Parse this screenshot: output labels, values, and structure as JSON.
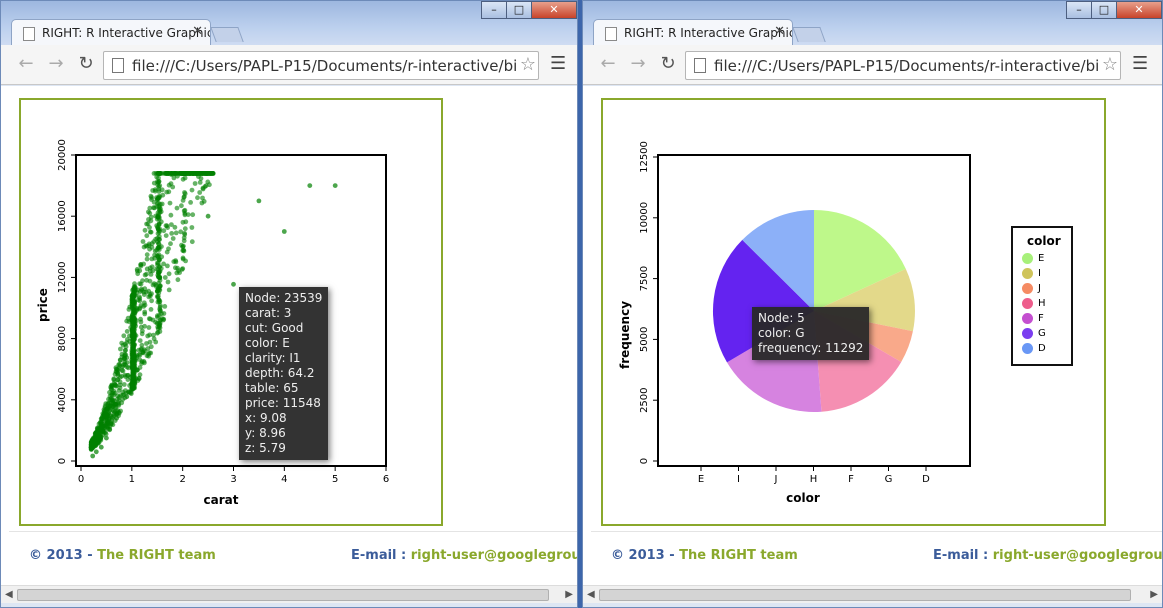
{
  "left_window": {
    "tab_title": "RIGHT: R Interactive Graphics",
    "url": "file:///C:/Users/PAPL-P15/Documents/r-interactive/bi",
    "footer": {
      "copyright": "© 2013 - ",
      "team": "The RIGHT team",
      "email_label": "E-mail : ",
      "email": "right-user@googlegroups.co"
    },
    "tooltip": [
      "Node: 23539",
      "carat: 3",
      "cut: Good",
      "color: E",
      "clarity: I1",
      "depth: 64.2",
      "table: 65",
      "price: 11548",
      "x: 9.08",
      "y: 8.96",
      "z: 5.79"
    ]
  },
  "right_window": {
    "tab_title": "RIGHT: R Interactive Graphics",
    "url": "file:///C:/Users/PAPL-P15/Documents/r-interactive/bi",
    "footer": {
      "copyright": "© 2013 - ",
      "team": "The RIGHT team",
      "email_label": "E-mail : ",
      "email": "right-user@googlegroups.co"
    },
    "tooltip": [
      "Node: 5",
      "color: G",
      "frequency: 11292"
    ],
    "legend": {
      "title": "color"
    }
  },
  "window_controls": {
    "minimize": "–",
    "maximize": "□",
    "close": "✕"
  },
  "icons": {
    "back": "back-arrow-icon",
    "forward": "forward-arrow-icon",
    "reload": "reload-icon",
    "star": "star-icon",
    "menu": "menu-icon",
    "close_tab": "close-icon"
  },
  "colors": {
    "frame": "#8aa82c",
    "scatter": "#008000",
    "footer_blue": "#3b5c9a"
  },
  "chart_data": [
    {
      "type": "scatter",
      "xlabel": "carat",
      "ylabel": "price",
      "xlim": [
        0,
        6
      ],
      "ylim": [
        0,
        20000
      ],
      "x_ticks": [
        0,
        1,
        2,
        3,
        4,
        5,
        6
      ],
      "y_ticks": [
        0,
        4000,
        8000,
        12000,
        16000,
        20000
      ],
      "series": [
        {
          "x": [
            0.23,
            0.3,
            0.4,
            0.5,
            0.7,
            0.9,
            1.0,
            1.2,
            1.5,
            2.0,
            2.5,
            3.0,
            3.5,
            4.0,
            4.5,
            5.0
          ],
          "y": [
            326,
            600,
            900,
            1500,
            2800,
            4200,
            5000,
            6500,
            9000,
            14000,
            16000,
            11548,
            17000,
            15000,
            18000,
            18000
          ]
        }
      ]
    },
    {
      "type": "pie",
      "xlabel": "color",
      "ylabel": "frequency",
      "ylim": [
        0,
        12500
      ],
      "x_ticks": [
        "E",
        "I",
        "J",
        "H",
        "F",
        "G",
        "D"
      ],
      "y_ticks": [
        0,
        2500,
        5000,
        7500,
        10000,
        12500
      ],
      "categories": [
        "E",
        "I",
        "J",
        "H",
        "F",
        "G",
        "D"
      ],
      "values": [
        9797,
        5422,
        2808,
        8304,
        9542,
        11292,
        6775
      ],
      "colors": [
        "#bef88a",
        "#e3d98a",
        "#f9a98a",
        "#f58fb2",
        "#d683e0",
        "#6423f0",
        "#8cb0f8"
      ],
      "legend_colors": [
        "#a7f07a",
        "#cfc45b",
        "#f58b63",
        "#ee5d8c",
        "#c44fd0",
        "#7b3ef0",
        "#6997f5"
      ]
    }
  ]
}
